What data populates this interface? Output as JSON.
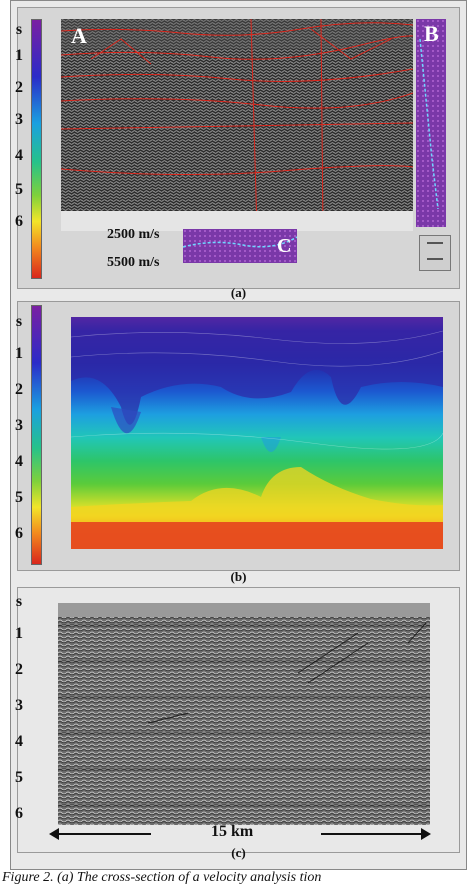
{
  "panels": {
    "a": {
      "caption": "(a)",
      "time_ticks": [
        "s",
        "1",
        "2",
        "3",
        "4",
        "5",
        "6"
      ],
      "label_A": "A",
      "label_B": "B",
      "label_C": "C",
      "vel_low": "2500 m/s",
      "vel_high": "5500 m/s"
    },
    "b": {
      "caption": "(b)",
      "time_ticks": [
        "s",
        "1",
        "2",
        "3",
        "4",
        "5",
        "6"
      ]
    },
    "c": {
      "caption": "(c)",
      "time_ticks": [
        "s",
        "1",
        "2",
        "3",
        "4",
        "5",
        "6"
      ],
      "distance_label": "15 km"
    }
  },
  "figure_caption": "Figure 2. (a) The cross-section of a velocity analysis tion",
  "colors": {
    "seismic_gray": "#3b3b3b",
    "velocity_purple": "#7a38a8",
    "horizon_red": "#d9261c",
    "background": "#e9e9e9"
  }
}
